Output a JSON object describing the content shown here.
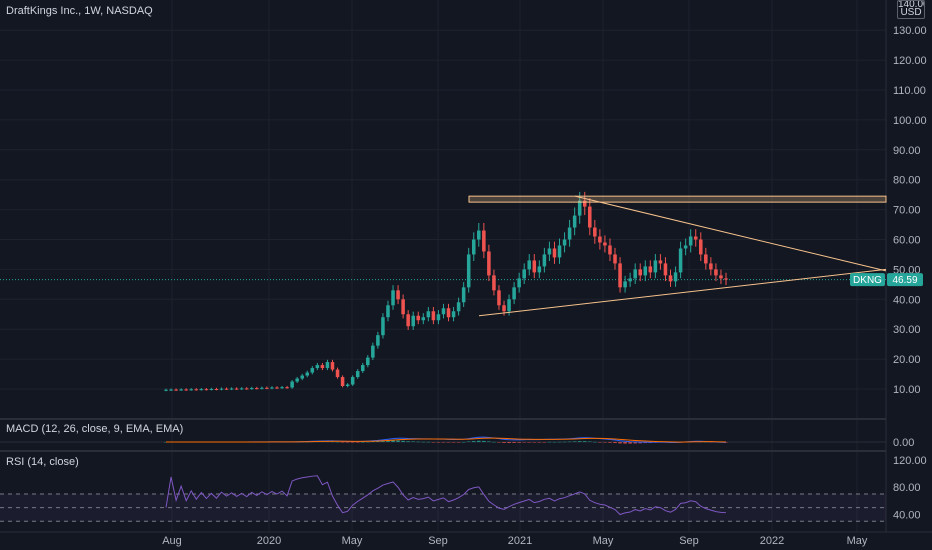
{
  "header": {
    "title": "DraftKings Inc., 1W, NASDAQ",
    "currency_top": "140.00",
    "currency": "USD"
  },
  "price_tag": {
    "symbol": "DKNG",
    "value": "46.59",
    "color": "#26a69a"
  },
  "macd": {
    "label": "MACD (12, 26, close, 9, EMA, EMA)",
    "zero_label": "0.00",
    "macd_color": "#2962ff",
    "signal_color": "#ff6d00",
    "hist_pos": "#26a69a",
    "hist_neg": "#ef5350"
  },
  "rsi": {
    "label": "RSI (14, close)",
    "ticks": [
      "120.00",
      "80.00",
      "40.00"
    ],
    "overbought": 70,
    "oversold": 30,
    "line_color": "#7e57c2"
  },
  "chart_data": {
    "type": "candlestick",
    "title": "DraftKings Inc., 1W, NASDAQ",
    "y_ticks": [
      "130.00",
      "120.00",
      "110.00",
      "100.00",
      "90.00",
      "80.00",
      "70.00",
      "60.00",
      "50.00",
      "40.00",
      "30.00",
      "20.00",
      "10.00"
    ],
    "y_tick_values": [
      130,
      120,
      110,
      100,
      90,
      80,
      70,
      60,
      50,
      40,
      30,
      20,
      10
    ],
    "x_tick_labels": [
      "Aug",
      "2020",
      "May",
      "Sep",
      "2021",
      "May",
      "Sep",
      "2022",
      "May"
    ],
    "ylim": [
      -3.6,
      142
    ],
    "colors": {
      "up": "#26a69a",
      "down": "#ef5350",
      "drawing": "#f7c28c"
    },
    "last_close": 46.59,
    "series": [
      {
        "name": "DKNG",
        "values": [
          9.75,
          9.8,
          9.77,
          9.85,
          9.8,
          9.9,
          9.85,
          9.95,
          9.9,
          10,
          9.95,
          10.1,
          10.05,
          10.15,
          10.1,
          10.2,
          10.15,
          10.3,
          10.25,
          10.4,
          10.35,
          10.5,
          10.45,
          10.6,
          10.5,
          12.5,
          13.5,
          14.5,
          15.5,
          17,
          18,
          17,
          19,
          16.5,
          14,
          11,
          11.5,
          14,
          16,
          18,
          20.5,
          24.5,
          28,
          34,
          38,
          43,
          40,
          35,
          31,
          34.5,
          33,
          34,
          36,
          33,
          35,
          37,
          34,
          36,
          39,
          44,
          55,
          60,
          63,
          56,
          48,
          43,
          38,
          36,
          40,
          44,
          47,
          50,
          53,
          49,
          51,
          55,
          57,
          54,
          58,
          60,
          64,
          68,
          73,
          71,
          64,
          61,
          59,
          58,
          55,
          52,
          44,
          46,
          47,
          50,
          48,
          51,
          49,
          53,
          52,
          48,
          46,
          49,
          57,
          58,
          61,
          60,
          55,
          52,
          50,
          48,
          47,
          46.59
        ]
      }
    ],
    "drawings": {
      "resistance_zone": [
        72.5,
        74.5
      ],
      "upper_trendline": [
        74.5,
        49.5
      ],
      "lower_trendline": [
        34.5,
        50
      ]
    }
  }
}
